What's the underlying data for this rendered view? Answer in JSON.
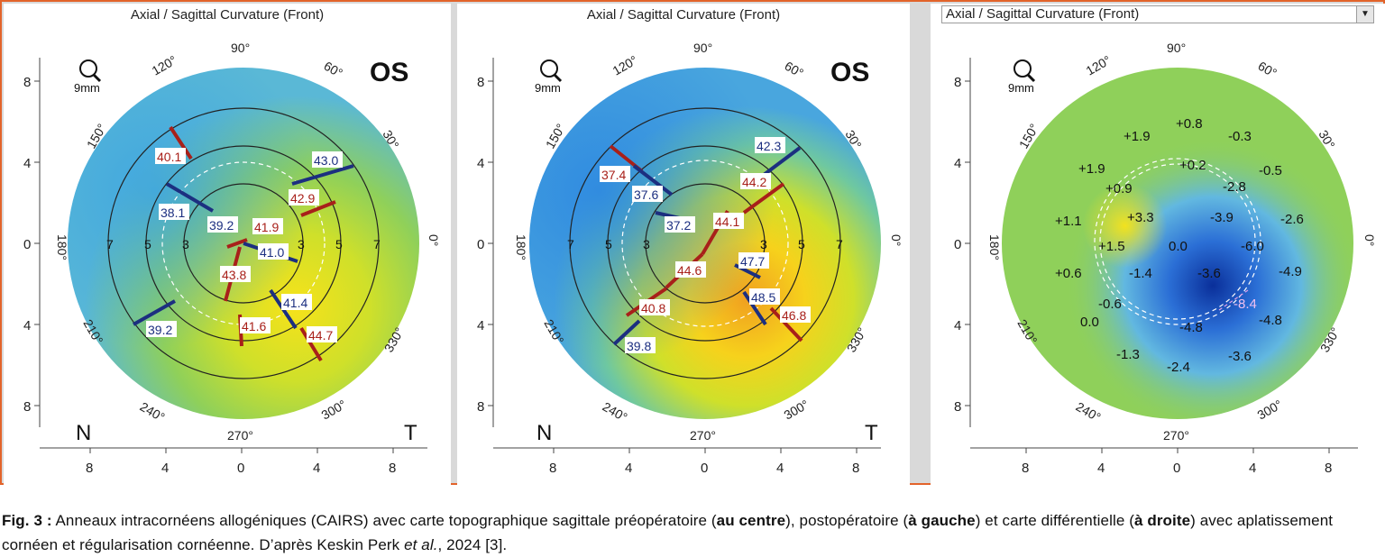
{
  "panels": [
    {
      "title": "Axial / Sagittal Curvature (Front)",
      "eye": "OS",
      "zoom": "9mm",
      "nasal": "N",
      "temporal": "T",
      "axis_y": [
        "8",
        "4",
        "0",
        "4",
        "8"
      ],
      "axis_x": [
        "8",
        "4",
        "0",
        "4",
        "8"
      ],
      "degrees": [
        "90°",
        "120°",
        "60°",
        "150°",
        "30°",
        "180°",
        "0°",
        "210°",
        "330°",
        "240°",
        "300°",
        "270°"
      ],
      "ring_labels": [
        "7",
        "5",
        "3",
        "3",
        "5",
        "7"
      ],
      "values_red": [
        "40.1",
        "42.9",
        "41.9",
        "43.8",
        "41.6",
        "44.7"
      ],
      "values_blue": [
        "43.0",
        "38.1",
        "39.2",
        "41.0",
        "41.4",
        "39.2"
      ]
    },
    {
      "title": "Axial / Sagittal Curvature (Front)",
      "eye": "OS",
      "zoom": "9mm",
      "nasal": "N",
      "temporal": "T",
      "axis_y": [
        "8",
        "4",
        "0",
        "4",
        "8"
      ],
      "axis_x": [
        "8",
        "4",
        "0",
        "4",
        "8"
      ],
      "degrees": [
        "90°",
        "120°",
        "60°",
        "150°",
        "30°",
        "180°",
        "0°",
        "210°",
        "330°",
        "240°",
        "300°",
        "270°"
      ],
      "ring_labels": [
        "7",
        "5",
        "3",
        "3",
        "5",
        "7"
      ],
      "values_red": [
        "37.4",
        "44.2",
        "44.1",
        "44.6",
        "40.8",
        "46.8"
      ],
      "values_blue": [
        "42.3",
        "37.6",
        "37.2",
        "47.7",
        "48.5",
        "39.8"
      ]
    },
    {
      "dropdown": "Axial / Sagittal Curvature (Front)",
      "zoom": "9mm",
      "axis_y": [
        "8",
        "4",
        "0",
        "4",
        "8"
      ],
      "axis_x": [
        "8",
        "4",
        "0",
        "4",
        "8"
      ],
      "degrees": [
        "90°",
        "120°",
        "60°",
        "150°",
        "30°",
        "180°",
        "0°",
        "210°",
        "330°",
        "240°",
        "300°",
        "270°"
      ],
      "diff_values": [
        "+1.9",
        "+0.8",
        "-0.3",
        "+1.9",
        "+0.2",
        "-0.5",
        "+0.9",
        "-2.8",
        "+1.1",
        "+3.3",
        "-3.9",
        "-2.6",
        "+1.5",
        "0.0",
        "-6.0",
        "+0.6",
        "-1.4",
        "-3.6",
        "-4.9",
        "-0.6",
        "-8.4",
        "0.0",
        "-4.8",
        "-4.8",
        "-1.3",
        "-2.4",
        "-3.6"
      ]
    }
  ],
  "caption": {
    "fig": "Fig. 3 :",
    "t1": " Anneaux intracornéens allogéniques (CAIRS) avec carte topographique sagittale préopératoire (",
    "b1": "au centre",
    "t2": "), postopératoire (",
    "b2": "à gauche",
    "t3": ") et carte différentielle (",
    "b3": "à droite",
    "t4": ") avec aplatissement cornéen et régularisation cornéenne. D’après Keskin Perk ",
    "i1": "et al.",
    "t5": ", 2024 [3]."
  },
  "colors": {
    "frame": "#e2632a",
    "red_marker": "#a8201a",
    "blue_marker": "#1c2f80"
  }
}
